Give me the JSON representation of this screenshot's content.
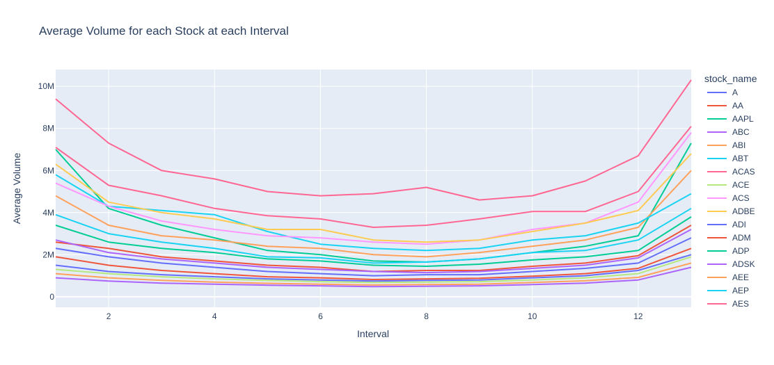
{
  "chart_data": {
    "type": "line",
    "title": "Average Volume for each Stock at each Interval",
    "xlabel": "Interval",
    "ylabel": "Average Volume",
    "xlim": [
      1,
      13
    ],
    "ylim": [
      -500000,
      10800000
    ],
    "x": [
      1,
      2,
      3,
      4,
      5,
      6,
      7,
      8,
      9,
      10,
      11,
      12,
      13
    ],
    "x_ticks": [
      2,
      4,
      6,
      8,
      10,
      12
    ],
    "x_tick_labels": [
      "2",
      "4",
      "6",
      "8",
      "10",
      "12"
    ],
    "y_ticks": [
      0,
      2000000,
      4000000,
      6000000,
      8000000,
      10000000
    ],
    "y_tick_labels": [
      "0",
      "2M",
      "4M",
      "6M",
      "8M",
      "10M"
    ],
    "grid": true,
    "plot_background": "#e5ecf6",
    "legend_title": "stock_name",
    "legend_position": "right",
    "series": [
      {
        "name": "A",
        "color": "#636efa",
        "values": [
          1500000,
          1200000,
          1050000,
          950000,
          850000,
          800000,
          750000,
          780000,
          800000,
          900000,
          1000000,
          1250000,
          2000000
        ]
      },
      {
        "name": "AA",
        "color": "#EF553B",
        "values": [
          2600000,
          2300000,
          1900000,
          1700000,
          1500000,
          1400000,
          1200000,
          1250000,
          1250000,
          1450000,
          1600000,
          1950000,
          3400000
        ]
      },
      {
        "name": "AAPL",
        "color": "#00cc96",
        "values": [
          7000000,
          4200000,
          3400000,
          2800000,
          2200000,
          2000000,
          1700000,
          1650000,
          1800000,
          2100000,
          2400000,
          2900000,
          7300000
        ]
      },
      {
        "name": "ABC",
        "color": "#ab63fa",
        "values": [
          900000,
          750000,
          650000,
          600000,
          550000,
          520000,
          480000,
          500000,
          520000,
          580000,
          650000,
          800000,
          1400000
        ]
      },
      {
        "name": "ABI",
        "color": "#FFA15A",
        "values": [
          4800000,
          3400000,
          2900000,
          2700000,
          2400000,
          2300000,
          2000000,
          1900000,
          2100000,
          2400000,
          2700000,
          3300000,
          6000000
        ]
      },
      {
        "name": "ABT",
        "color": "#19d3f3",
        "values": [
          5800000,
          4300000,
          4100000,
          3900000,
          3100000,
          2500000,
          2300000,
          2200000,
          2300000,
          2700000,
          2900000,
          3500000,
          4900000
        ]
      },
      {
        "name": "ACAS",
        "color": "#FF6692",
        "values": [
          9400000,
          7300000,
          6000000,
          5600000,
          5000000,
          4800000,
          4900000,
          5200000,
          4600000,
          4800000,
          5500000,
          6700000,
          10300000
        ]
      },
      {
        "name": "ACE",
        "color": "#B6E880",
        "values": [
          1300000,
          1100000,
          950000,
          850000,
          780000,
          720000,
          680000,
          700000,
          720000,
          800000,
          900000,
          1100000,
          1900000
        ]
      },
      {
        "name": "ACS",
        "color": "#FF97FF",
        "values": [
          5400000,
          4300000,
          3600000,
          3200000,
          2900000,
          2800000,
          2600000,
          2500000,
          2700000,
          3200000,
          3500000,
          4500000,
          7800000
        ]
      },
      {
        "name": "ADBE",
        "color": "#FECB52",
        "values": [
          6300000,
          4500000,
          4000000,
          3700000,
          3200000,
          3200000,
          2700000,
          2600000,
          2700000,
          3100000,
          3500000,
          4100000,
          6800000
        ]
      },
      {
        "name": "ADI",
        "color": "#636efa",
        "values": [
          2300000,
          1900000,
          1600000,
          1400000,
          1200000,
          1100000,
          1000000,
          1050000,
          1050000,
          1200000,
          1350000,
          1600000,
          2800000
        ]
      },
      {
        "name": "ADM",
        "color": "#EF553B",
        "values": [
          1900000,
          1500000,
          1250000,
          1100000,
          950000,
          900000,
          820000,
          850000,
          880000,
          980000,
          1100000,
          1350000,
          2300000
        ]
      },
      {
        "name": "ADP",
        "color": "#00cc96",
        "values": [
          3400000,
          2600000,
          2300000,
          2100000,
          1800000,
          1700000,
          1500000,
          1450000,
          1550000,
          1750000,
          1900000,
          2200000,
          3800000
        ]
      },
      {
        "name": "ADSK",
        "color": "#ab63fa",
        "values": [
          2700000,
          2100000,
          1800000,
          1600000,
          1400000,
          1300000,
          1200000,
          1150000,
          1200000,
          1350000,
          1500000,
          1850000,
          3200000
        ]
      },
      {
        "name": "AEE",
        "color": "#FFA15A",
        "values": [
          1100000,
          900000,
          780000,
          700000,
          640000,
          600000,
          560000,
          580000,
          600000,
          680000,
          760000,
          920000,
          1600000
        ]
      },
      {
        "name": "AEP",
        "color": "#19d3f3",
        "values": [
          3900000,
          3000000,
          2600000,
          2300000,
          1900000,
          1850000,
          1600000,
          1650000,
          1800000,
          2100000,
          2200000,
          2700000,
          4200000
        ]
      },
      {
        "name": "AES",
        "color": "#FF6692",
        "values": [
          7100000,
          5300000,
          4800000,
          4200000,
          3850000,
          3700000,
          3300000,
          3400000,
          3700000,
          4050000,
          4050000,
          5000000,
          8100000
        ]
      }
    ]
  }
}
